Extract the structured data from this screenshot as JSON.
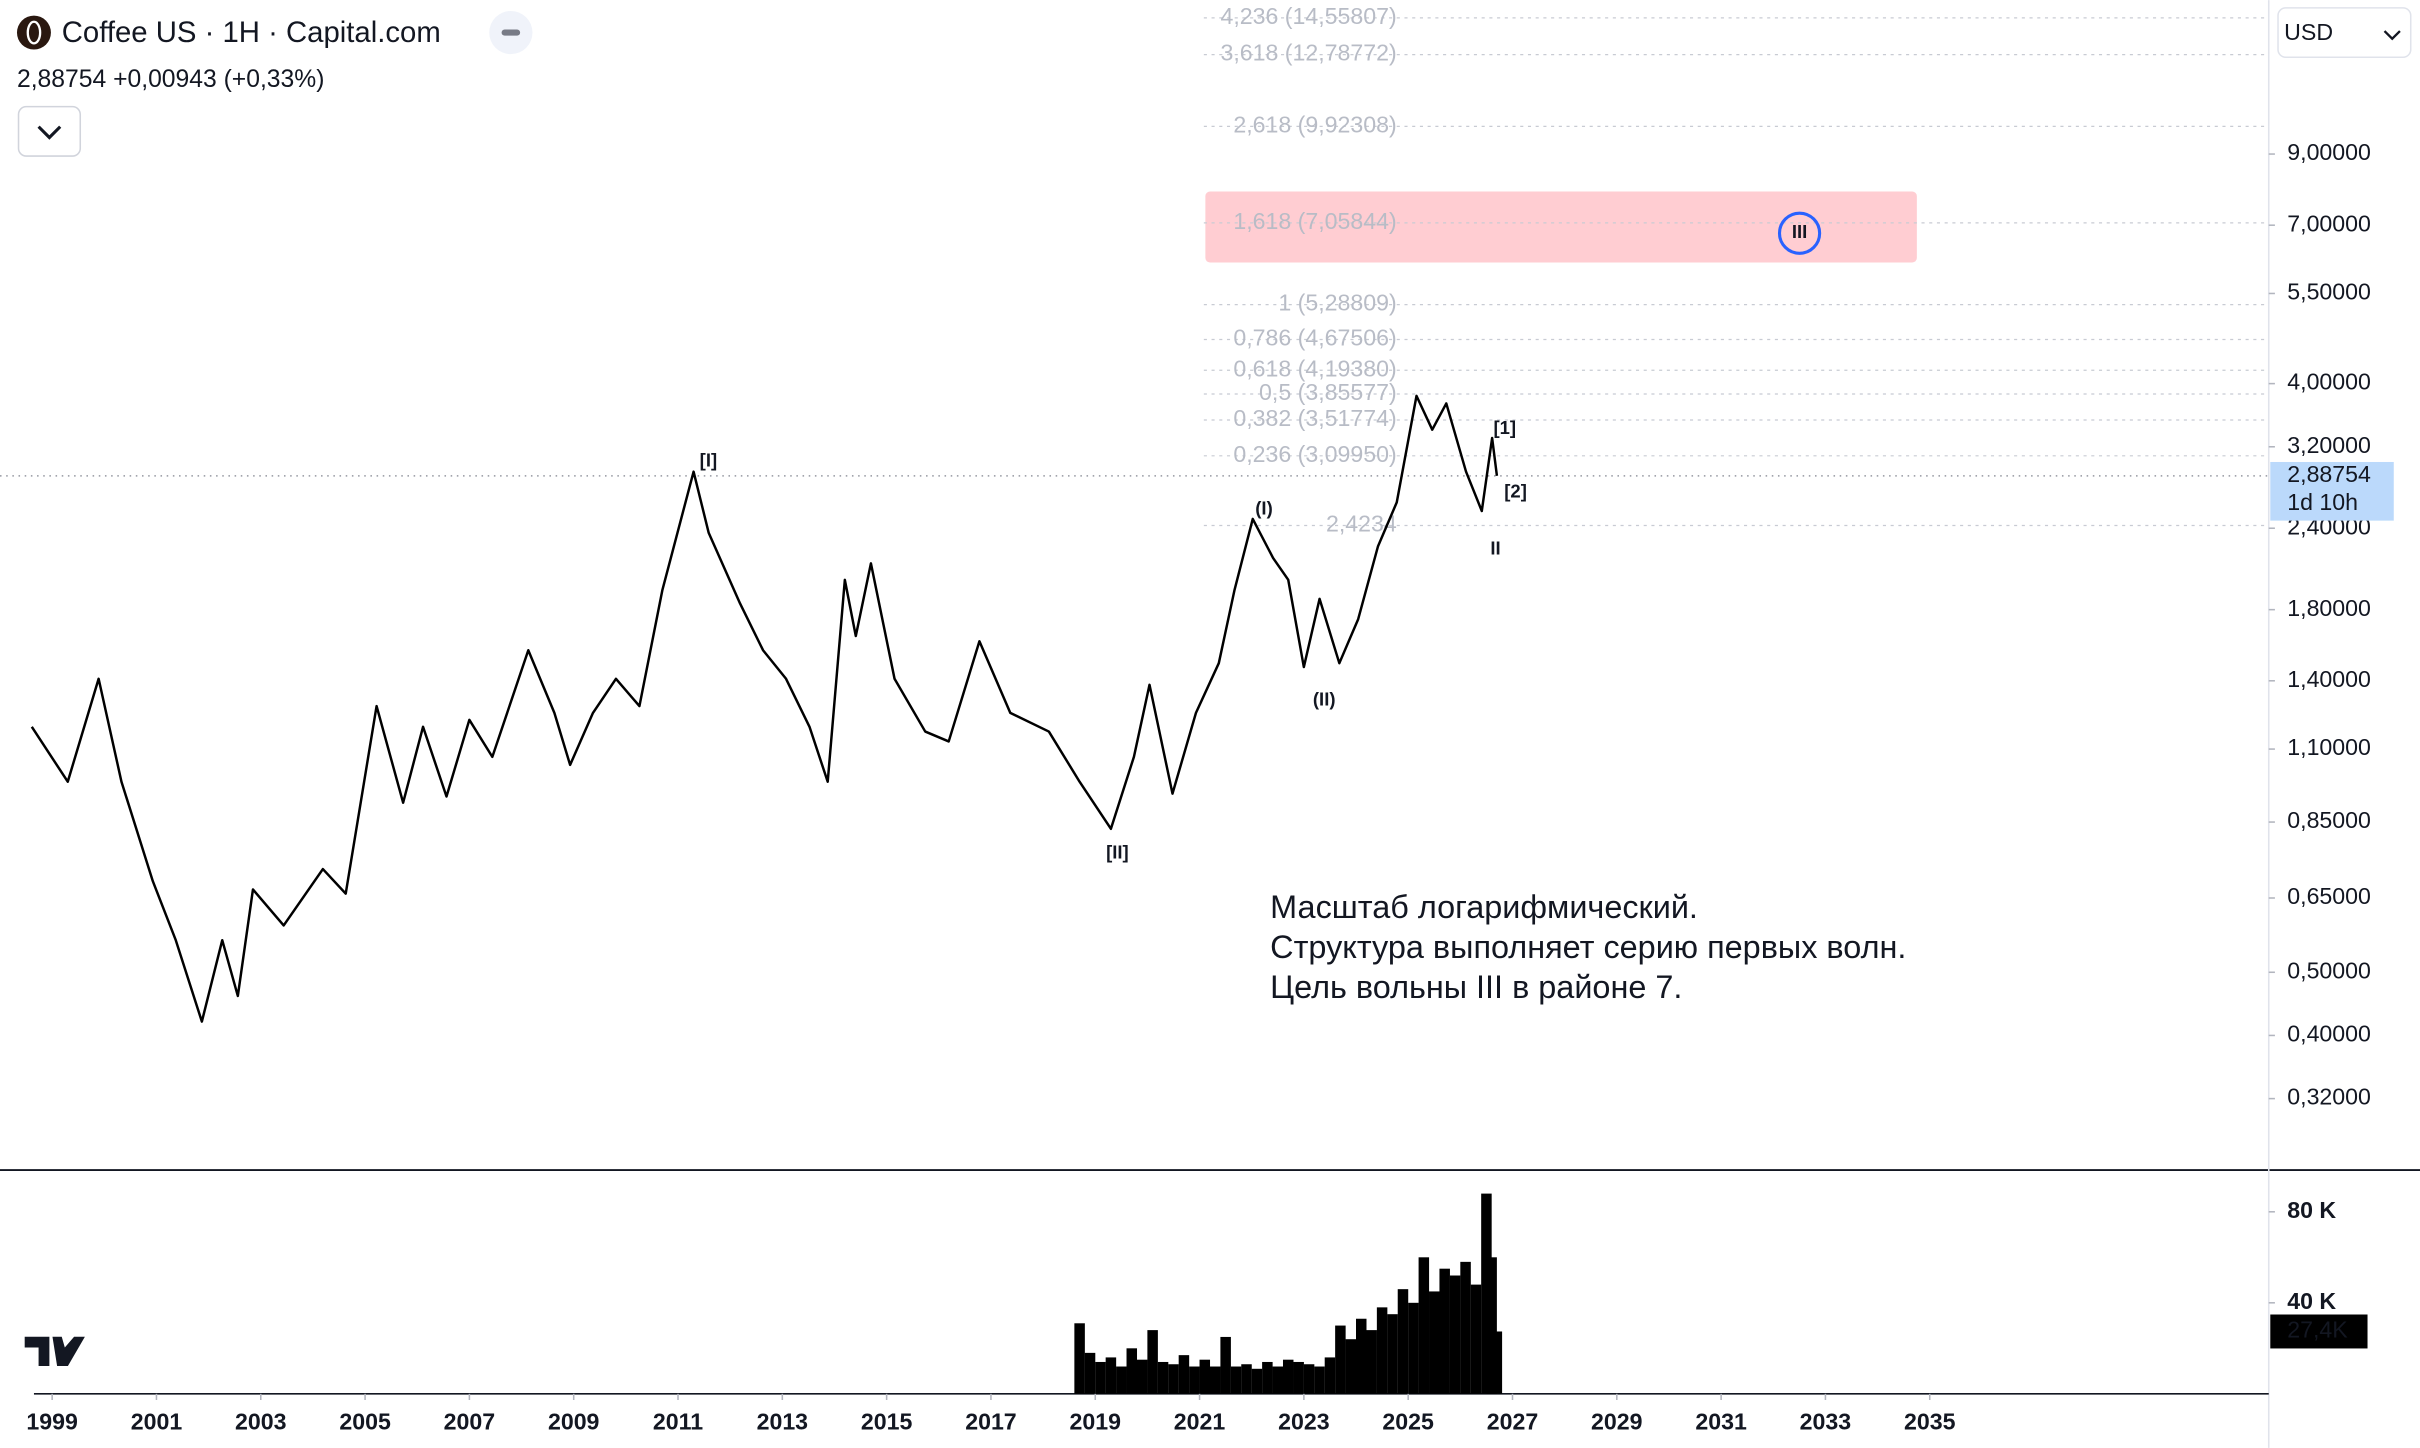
{
  "header": {
    "title": "Coffee US · 1H · Capital.com",
    "quote": "2,88754  +0,00943 (+0,33%)",
    "currency": "USD"
  },
  "chart_data": [
    {
      "type": "line",
      "log": true,
      "color": "#000000",
      "x": [
        1998.61,
        1999.3,
        1999.89,
        2000.33,
        2000.93,
        2001.37,
        2001.87,
        2002.26,
        2002.56,
        2002.85,
        2003.44,
        2004.19,
        2004.63,
        2005.22,
        2005.73,
        2006.11,
        2006.56,
        2007.0,
        2007.44,
        2008.13,
        2008.63,
        2008.93,
        2009.37,
        2009.81,
        2010.26,
        2010.7,
        2011.3,
        2011.59,
        2012.19,
        2012.63,
        2013.07,
        2013.52,
        2013.87,
        2014.2,
        2014.41,
        2014.7,
        2015.15,
        2015.74,
        2016.19,
        2016.78,
        2017.37,
        2018.11,
        2018.7,
        2019.3,
        2019.74,
        2020.04,
        2020.48,
        2020.93,
        2021.37,
        2021.67,
        2022.02,
        2022.41,
        2022.7,
        2023.0,
        2023.3,
        2023.68,
        2024.04,
        2024.42,
        2024.78,
        2025.16,
        2025.46,
        2025.73,
        2026.11,
        2026.41,
        2026.61,
        2026.7
      ],
      "values": [
        1.19,
        0.98,
        1.41,
        0.98,
        0.69,
        0.56,
        0.42,
        0.56,
        0.46,
        0.67,
        0.59,
        0.72,
        0.66,
        1.28,
        0.91,
        1.19,
        0.93,
        1.22,
        1.07,
        1.56,
        1.25,
        1.04,
        1.25,
        1.41,
        1.28,
        1.93,
        2.93,
        2.36,
        1.84,
        1.56,
        1.41,
        1.19,
        0.98,
        2.0,
        1.64,
        2.12,
        1.41,
        1.17,
        1.13,
        1.61,
        1.25,
        1.17,
        0.98,
        0.83,
        1.07,
        1.38,
        0.94,
        1.25,
        1.49,
        1.93,
        2.48,
        2.16,
        2.0,
        1.47,
        1.87,
        1.49,
        1.74,
        2.25,
        2.63,
        3.83,
        3.4,
        3.73,
        2.93,
        2.55,
        3.3,
        2.88754
      ],
      "xlim": [
        1998,
        2041.5
      ],
      "ylim": [
        0.25,
        15.5
      ],
      "yticks": [
        {
          "value": 9.0,
          "label": "9,00000"
        },
        {
          "value": 7.0,
          "label": "7,00000"
        },
        {
          "value": 5.5,
          "label": "5,50000"
        },
        {
          "value": 4.0,
          "label": "4,00000"
        },
        {
          "value": 3.2,
          "label": "3,20000"
        },
        {
          "value": 2.4,
          "label": "2,40000"
        },
        {
          "value": 1.8,
          "label": "1,80000"
        },
        {
          "value": 1.4,
          "label": "1,40000"
        },
        {
          "value": 1.1,
          "label": "1,10000"
        },
        {
          "value": 0.85,
          "label": "0,85000"
        },
        {
          "value": 0.65,
          "label": "0,65000"
        },
        {
          "value": 0.5,
          "label": "0,50000"
        },
        {
          "value": 0.4,
          "label": "0,40000"
        },
        {
          "value": 0.32,
          "label": "0,32000"
        }
      ],
      "fib_levels": [
        {
          "value": 14.55807,
          "label": "4,236 (14,55807)"
        },
        {
          "value": 12.78772,
          "label": "3,618 (12,78772)"
        },
        {
          "value": 9.92308,
          "label": "2,618 (9,92308)"
        },
        {
          "value": 7.05844,
          "label": "1,618 (7,05844)"
        },
        {
          "value": 5.28809,
          "label": "1 (5,28809)"
        },
        {
          "value": 4.67506,
          "label": "0,786 (4,67506)"
        },
        {
          "value": 4.1938,
          "label": "0,618 (4,19380)"
        },
        {
          "value": 3.85577,
          "label": "0,5 (3,85577)"
        },
        {
          "value": 3.51774,
          "label": "0,382 (3,51774)"
        },
        {
          "value": 3.0995,
          "label": "0,236 (3,09950)"
        },
        {
          "value": 2.4234,
          "label": "2,4234"
        }
      ],
      "current": {
        "value": 2.88754,
        "label": "2,88754",
        "countdown": "1d 10h",
        "color": "#bbd9fb"
      },
      "wave_labels": [
        "[I]",
        "[II]",
        "(I)",
        "(II)",
        "[1]",
        "[2]",
        "II",
        "III"
      ],
      "annotation": [
        "Масштаб логарифмический.",
        "Структура выполняет серию первых волн.",
        "Цель вольны III в районе 7."
      ]
    },
    {
      "type": "bar",
      "color": "#000000",
      "x": [
        2018.7,
        2018.9,
        2019.1,
        2019.3,
        2019.5,
        2019.7,
        2019.9,
        2020.1,
        2020.3,
        2020.5,
        2020.7,
        2020.9,
        2021.1,
        2021.3,
        2021.5,
        2021.7,
        2021.9,
        2022.1,
        2022.3,
        2022.5,
        2022.7,
        2022.9,
        2023.1,
        2023.3,
        2023.5,
        2023.7,
        2023.9,
        2024.1,
        2024.3,
        2024.5,
        2024.7,
        2024.9,
        2025.1,
        2025.3,
        2025.5,
        2025.7,
        2025.9,
        2026.1,
        2026.3,
        2026.5,
        2026.6,
        2026.7
      ],
      "values": [
        31000,
        18000,
        14000,
        16000,
        12000,
        20000,
        15000,
        28000,
        14000,
        13000,
        17000,
        12000,
        15000,
        12000,
        25000,
        12000,
        13000,
        11000,
        14000,
        12000,
        15000,
        14000,
        13000,
        12000,
        16000,
        30000,
        24000,
        33000,
        28000,
        38000,
        35000,
        46000,
        40000,
        60000,
        45000,
        55000,
        52000,
        58000,
        48000,
        88000,
        60000,
        27400
      ],
      "xlim": [
        1998,
        2041.5
      ],
      "ylim": [
        0,
        97000
      ],
      "yticks": [
        {
          "value": 40000,
          "label": "40 K"
        },
        {
          "value": 80000,
          "label": "80 K"
        }
      ],
      "xticks": [
        1999,
        2001,
        2003,
        2005,
        2007,
        2009,
        2011,
        2013,
        2015,
        2017,
        2019,
        2021,
        2023,
        2025,
        2027,
        2029,
        2031,
        2033,
        2035
      ],
      "current": {
        "value": 27400,
        "label": "27,4K"
      }
    }
  ]
}
